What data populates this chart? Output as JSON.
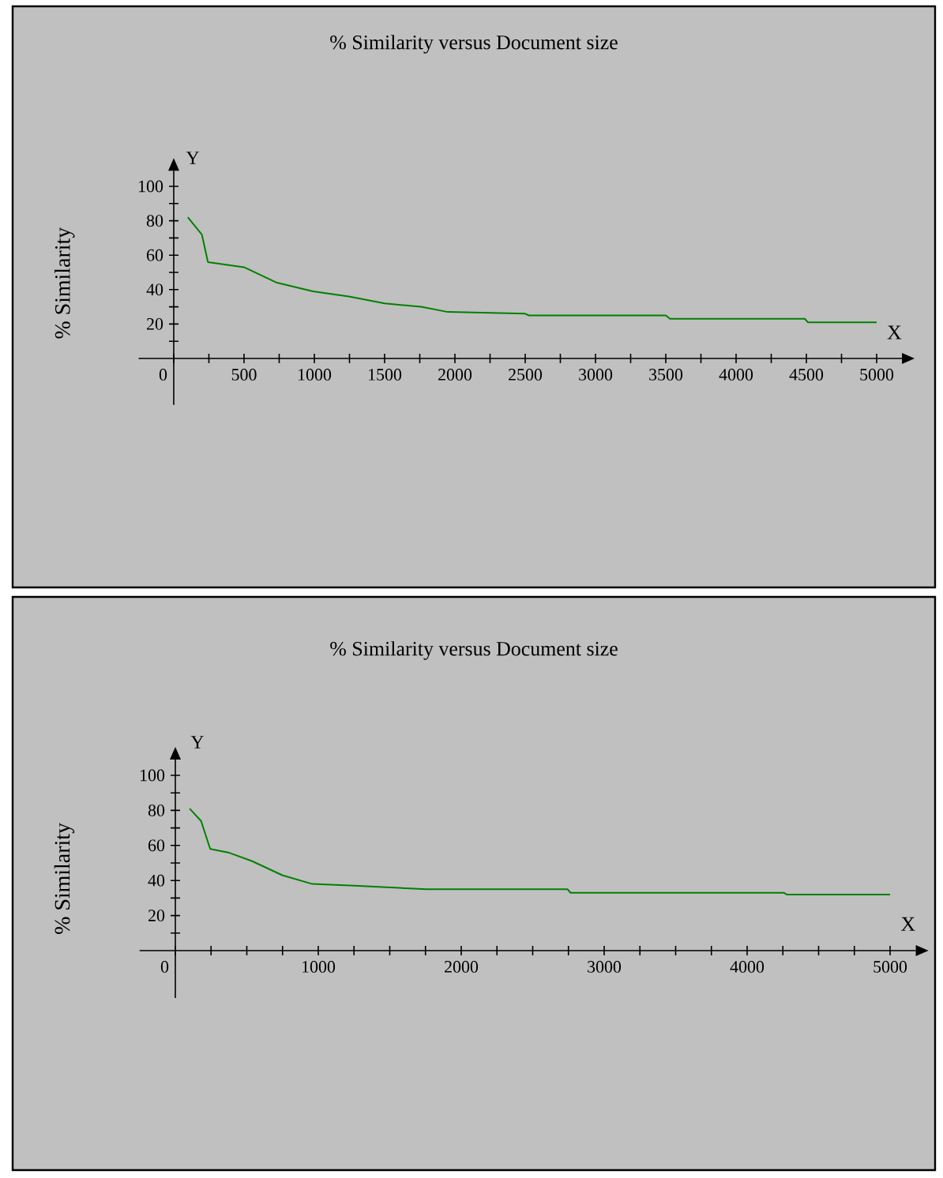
{
  "chart_data": [
    {
      "type": "line",
      "title": "% Similarity versus Document size",
      "xlabel": "X",
      "ylabel": "% Similarity",
      "annotations": [
        "Y"
      ],
      "x": [
        100,
        200,
        243,
        500,
        734,
        990,
        1245,
        1500,
        1758,
        1950,
        2500,
        2525,
        3500,
        3530,
        4490,
        4510,
        5000
      ],
      "series": [
        {
          "color": "#008000",
          "values": [
            82,
            72,
            56,
            53,
            44,
            39,
            36,
            32,
            30,
            27,
            26,
            25,
            25,
            23,
            23,
            21,
            21
          ]
        }
      ],
      "xlim": [
        -250,
        5180
      ],
      "ylim": [
        -27,
        109
      ],
      "xticks": [
        {
          "value": 0,
          "label": "0"
        },
        {
          "value": 250,
          "label": null
        },
        500,
        {
          "value": 750,
          "label": null
        },
        1000,
        {
          "value": 1250,
          "label": null
        },
        1500,
        {
          "value": 1750,
          "label": null
        },
        2000,
        {
          "value": 2250,
          "label": null
        },
        2500,
        {
          "value": 2750,
          "label": null
        },
        3000,
        {
          "value": 3250,
          "label": null
        },
        3500,
        {
          "value": 3750,
          "label": null
        },
        4000,
        {
          "value": 4250,
          "label": null
        },
        4500,
        {
          "value": 4750,
          "label": null
        },
        5000
      ],
      "yticks": [
        {
          "value": 10,
          "label": null
        },
        20,
        {
          "value": 30,
          "label": null
        },
        40,
        {
          "value": 50,
          "label": null
        },
        60,
        {
          "value": 70,
          "label": null
        },
        80,
        {
          "value": 90,
          "label": null
        },
        100
      ]
    },
    {
      "type": "line",
      "title": "% Similarity versus Document size",
      "xlabel": "X",
      "ylabel": "% Similarity",
      "annotations": [
        "Y"
      ],
      "x": [
        100,
        180,
        244,
        370,
        538,
        748,
        958,
        1252,
        1756,
        2744,
        2765,
        4256,
        4277,
        5000
      ],
      "series": [
        {
          "color": "#008000",
          "values": [
            81,
            74,
            58,
            56,
            51,
            43,
            38,
            37,
            35,
            35,
            33,
            33,
            32,
            32
          ]
        }
      ],
      "xlim": [
        -250,
        5180
      ],
      "ylim": [
        -27,
        109
      ],
      "xticks": [
        {
          "value": 0,
          "label": "0"
        },
        {
          "value": 250,
          "label": null
        },
        {
          "value": 500,
          "label": null
        },
        {
          "value": 750,
          "label": null
        },
        1000,
        {
          "value": 1250,
          "label": null
        },
        {
          "value": 1500,
          "label": null
        },
        {
          "value": 1750,
          "label": null
        },
        2000,
        {
          "value": 2250,
          "label": null
        },
        {
          "value": 2500,
          "label": null
        },
        {
          "value": 2750,
          "label": null
        },
        3000,
        {
          "value": 3250,
          "label": null
        },
        {
          "value": 3500,
          "label": null
        },
        {
          "value": 3750,
          "label": null
        },
        4000,
        {
          "value": 4250,
          "label": null
        },
        {
          "value": 4500,
          "label": null
        },
        {
          "value": 4750,
          "label": null
        },
        5000
      ],
      "yticks": [
        {
          "value": 10,
          "label": null
        },
        20,
        {
          "value": 30,
          "label": null
        },
        40,
        {
          "value": 50,
          "label": null
        },
        60,
        {
          "value": 70,
          "label": null
        },
        80,
        {
          "value": 90,
          "label": null
        },
        100
      ]
    }
  ]
}
